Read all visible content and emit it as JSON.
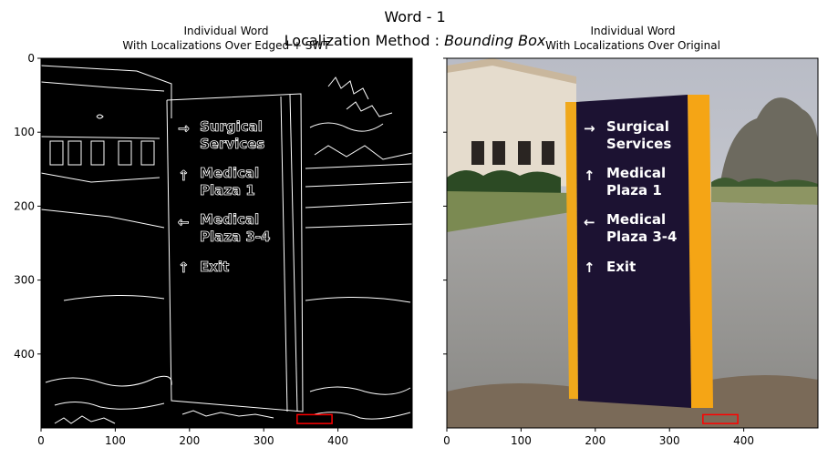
{
  "figure": {
    "title_line1": "Word - 1",
    "title_line2_prefix": "Localization Method : ",
    "title_line2_italic": "Bounding Box"
  },
  "chart_data": [
    {
      "type": "image",
      "title": [
        "Individual Word",
        "With Localizations Over Edged + SWT"
      ],
      "background": "#000000",
      "xlim": [
        0,
        500
      ],
      "ylim": [
        500,
        0
      ],
      "xticks": [
        0,
        100,
        200,
        300,
        400
      ],
      "yticks": [
        0,
        100,
        200,
        300,
        400
      ],
      "sign_text": [
        "Surgical",
        "Services",
        "Medical",
        "Plaza 1",
        "Medical",
        "Plaza 3-4",
        "Exit"
      ],
      "sign_text_color": "#ffffff",
      "box": {
        "x0": 345,
        "y0": 482,
        "x1": 392,
        "y1": 494,
        "color": "#ff0000"
      }
    },
    {
      "type": "image",
      "title": [
        "Individual Word",
        "With Localizations Over Original"
      ],
      "background": "#c2c4cb",
      "xlim": [
        0,
        500
      ],
      "ylim": [
        500,
        0
      ],
      "xticks": [
        0,
        100,
        200,
        300,
        400
      ],
      "yticks": [
        0,
        100,
        200,
        300,
        400
      ],
      "sign_text": [
        "Surgical",
        "Services",
        "Medical",
        "Plaza 1",
        "Medical",
        "Plaza 3-4",
        "Exit"
      ],
      "sign_text_color": "#ffffff",
      "box": {
        "x0": 345,
        "y0": 482,
        "x1": 392,
        "y1": 494,
        "color": "#ff0000"
      }
    }
  ]
}
